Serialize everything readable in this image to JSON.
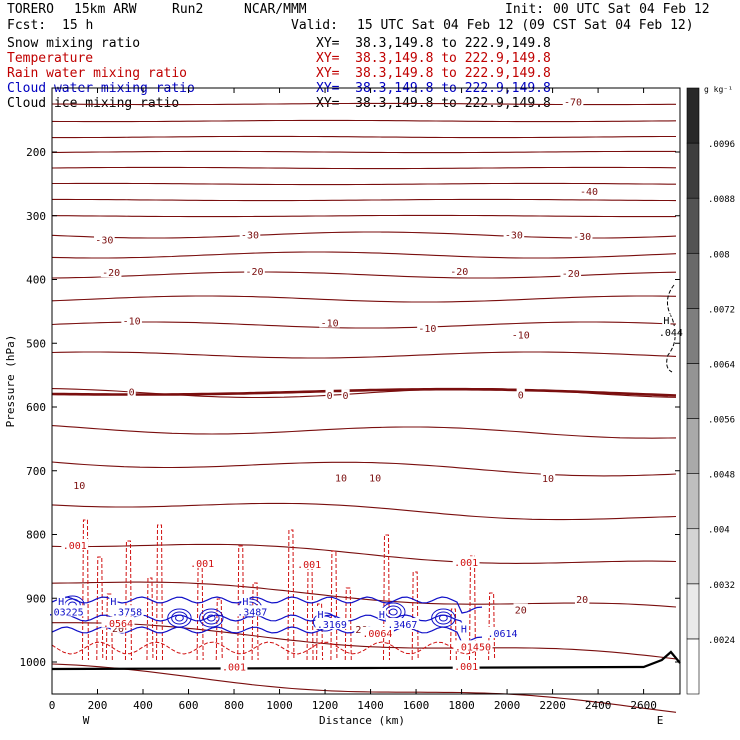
{
  "header": {
    "model": "TORERO",
    "resolution": "15km ARW",
    "run": "Run2",
    "org": "NCAR/MMM",
    "init_label": "Init:",
    "init": "00 UTC Sat 04 Feb 12",
    "fcst_label": "Fcst:",
    "fcst": "15 h",
    "valid_label": "Valid:",
    "valid": "15 UTC Sat 04 Feb 12 (09 CST Sat 04 Feb 12)"
  },
  "fields": [
    {
      "name": "Snow mixing ratio",
      "xy": "XY=  38.3,149.8 to 222.9,149.8",
      "color": "#000000"
    },
    {
      "name": "Temperature",
      "xy": "XY=  38.3,149.8 to 222.9,149.8",
      "color": "#c00000"
    },
    {
      "name": "Rain water mixing ratio",
      "xy": "XY=  38.3,149.8 to 222.9,149.8",
      "color": "#c00000"
    },
    {
      "name": "Cloud water mixing ratio",
      "xy": "XY=  38.3,149.8 to 222.9,149.8",
      "color": "#0000c0"
    },
    {
      "name": "Cloud ice mixing ratio",
      "xy": "XY=  38.3,149.8 to 222.9,149.8",
      "color": "#000000"
    }
  ],
  "colors": {
    "temperature": "#7a0e0e",
    "zero_isotherm": "#7a0e0e",
    "rain": "#d01010",
    "cloud_water": "#1010c8",
    "ground": "#000000"
  },
  "chart_data": {
    "type": "cross-section contour",
    "xlabel": "Distance (km)",
    "ylabel": "Pressure (hPa)",
    "xlim": [
      0,
      2760
    ],
    "ylim": [
      1050,
      100
    ],
    "x_ticks": [
      0,
      200,
      400,
      600,
      800,
      1000,
      1200,
      1400,
      1600,
      1800,
      2000,
      2200,
      2400,
      2600
    ],
    "y_ticks": [
      200,
      300,
      400,
      500,
      600,
      700,
      800,
      900,
      1000
    ],
    "end_labels": {
      "left": "W",
      "right": "E"
    },
    "colorbar": {
      "unit": "g kg⁻¹",
      "ticks": [
        ".0024",
        ".0032",
        ".004",
        ".0048",
        ".0056",
        ".0064",
        ".0072",
        ".008",
        ".0088",
        ".0096"
      ]
    },
    "temperature_labels": [
      {
        "text": "-70",
        "x": 2290,
        "p": 122
      },
      {
        "text": "-40",
        "x": 2360,
        "p": 263
      },
      {
        "text": "-30",
        "x": 230,
        "p": 339
      },
      {
        "text": "-30",
        "x": 870,
        "p": 331
      },
      {
        "text": "-30",
        "x": 2030,
        "p": 331
      },
      {
        "text": "-30",
        "x": 2330,
        "p": 333
      },
      {
        "text": "-20",
        "x": 260,
        "p": 390
      },
      {
        "text": "-20",
        "x": 890,
        "p": 388
      },
      {
        "text": "-20",
        "x": 1790,
        "p": 388
      },
      {
        "text": "-20",
        "x": 2280,
        "p": 391
      },
      {
        "text": "-10",
        "x": 350,
        "p": 466
      },
      {
        "text": "-10",
        "x": 1220,
        "p": 469
      },
      {
        "text": "-10",
        "x": 1650,
        "p": 478
      },
      {
        "text": "-10",
        "x": 2060,
        "p": 488
      },
      {
        "text": "0",
        "x": 350,
        "p": 577
      },
      {
        "text": "0",
        "x": 1220,
        "p": 583
      },
      {
        "text": "0",
        "x": 1290,
        "p": 583
      },
      {
        "text": "0",
        "x": 2060,
        "p": 582
      },
      {
        "text": "10",
        "x": 120,
        "p": 724
      },
      {
        "text": "10",
        "x": 1270,
        "p": 712
      },
      {
        "text": "10",
        "x": 1420,
        "p": 712
      },
      {
        "text": "10",
        "x": 2180,
        "p": 713
      },
      {
        "text": "20",
        "x": 2330,
        "p": 903
      },
      {
        "text": "20",
        "x": 2060,
        "p": 919
      },
      {
        "text": "20",
        "x": 1360,
        "p": 950
      },
      {
        "text": "20",
        "x": 290,
        "p": 948
      }
    ],
    "rain_labels": [
      {
        "text": ".001",
        "x": 100,
        "p": 818
      },
      {
        "text": ".001",
        "x": 660,
        "p": 846
      },
      {
        "text": ".001",
        "x": 1130,
        "p": 848
      },
      {
        "text": ".001",
        "x": 1820,
        "p": 845
      },
      {
        "text": ".001",
        "x": 800,
        "p": 1009
      },
      {
        "text": ".001",
        "x": 1820,
        "p": 1008
      },
      {
        "text": ".0564",
        "x": 290,
        "p": 940
      },
      {
        "text": ".0064",
        "x": 1430,
        "p": 956
      },
      {
        "text": ".01450",
        "x": 1850,
        "p": 977
      }
    ],
    "cloud_water_labels": [
      {
        "text": "H",
        "x": 40,
        "p": 906
      },
      {
        "text": ".03225",
        "x": 60,
        "p": 922
      },
      {
        "text": "H",
        "x": 270,
        "p": 906
      },
      {
        "text": ".3758",
        "x": 330,
        "p": 922
      },
      {
        "text": "H",
        "x": 850,
        "p": 906
      },
      {
        "text": ".3487",
        "x": 880,
        "p": 922
      },
      {
        "text": "H",
        "x": 1180,
        "p": 926
      },
      {
        "text": ".3169",
        "x": 1230,
        "p": 942
      },
      {
        "text": "H",
        "x": 1450,
        "p": 926
      },
      {
        "text": ".3467",
        "x": 1540,
        "p": 942
      },
      {
        "text": "H",
        "x": 1810,
        "p": 949
      },
      {
        "text": ".0614",
        "x": 1980,
        "p": 956
      }
    ],
    "ice_labels": [
      {
        "text": "H",
        "x": 2700,
        "p": 465
      },
      {
        "text": ".044",
        "x": 2720,
        "p": 484
      }
    ]
  }
}
